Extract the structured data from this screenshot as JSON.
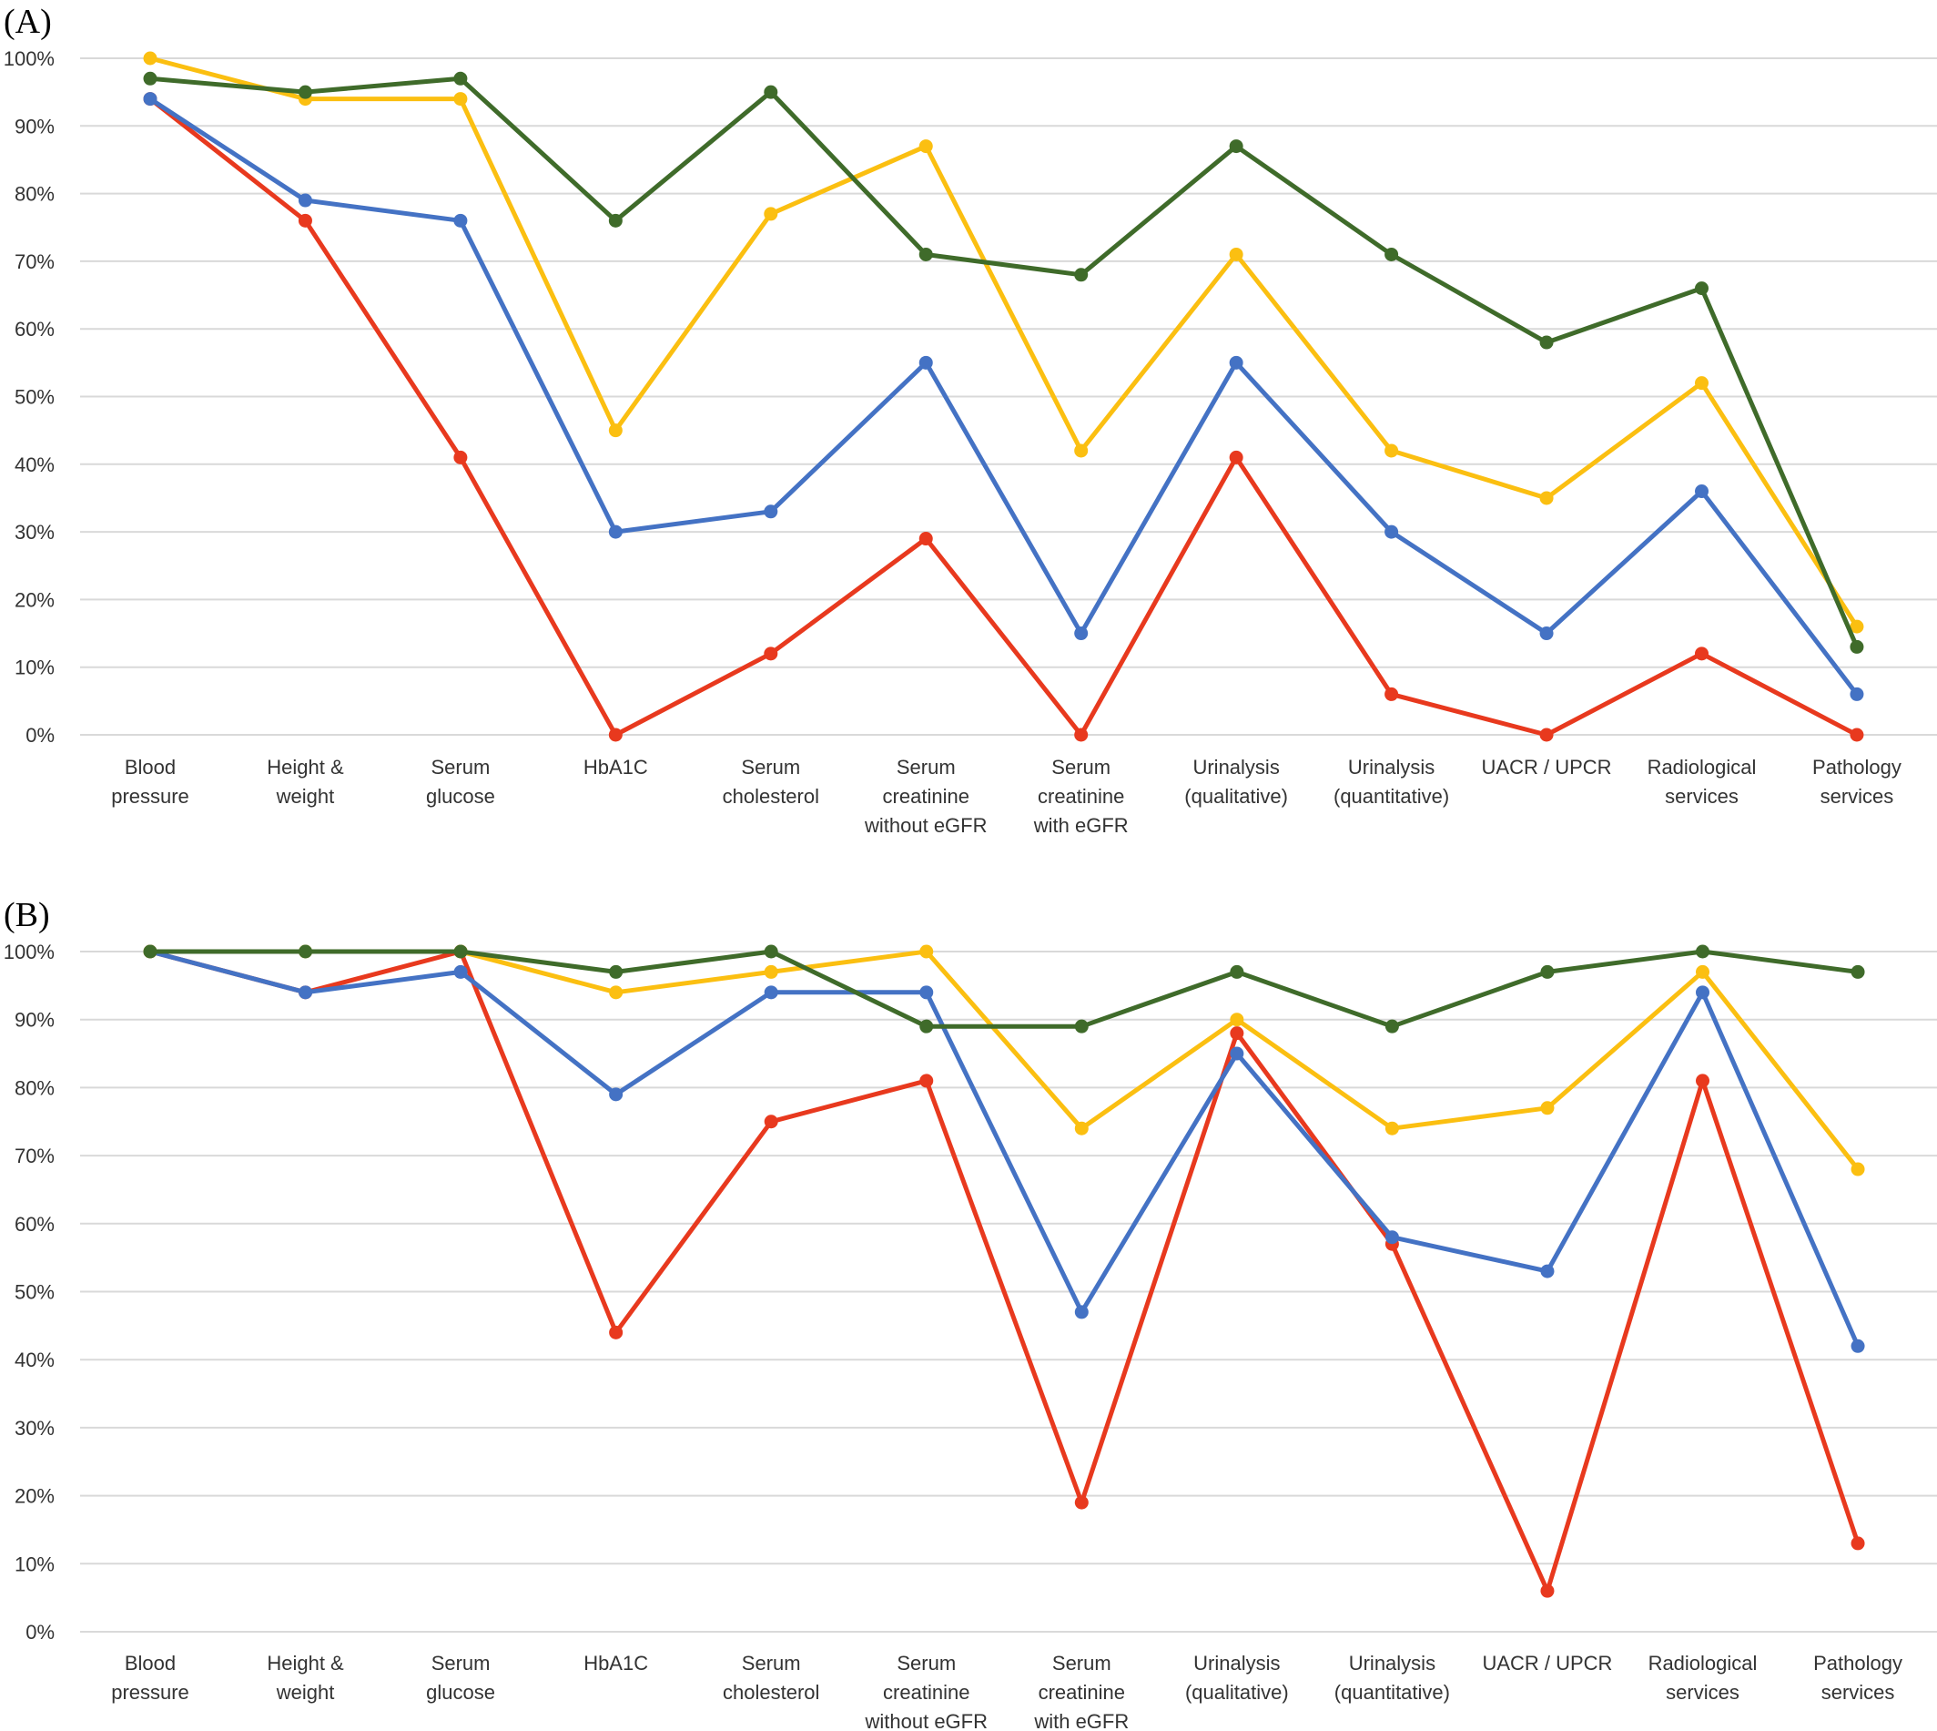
{
  "chart_data": [
    {
      "type": "line",
      "panel_label": "(A)",
      "title": "",
      "xlabel": "",
      "ylabel": "",
      "ylim": [
        0,
        100
      ],
      "yticks": [
        "0%",
        "10%",
        "20%",
        "30%",
        "40%",
        "50%",
        "60%",
        "70%",
        "80%",
        "90%",
        "100%"
      ],
      "grid": true,
      "categories": [
        [
          "Blood",
          "pressure"
        ],
        [
          "Height &",
          "weight"
        ],
        [
          "Serum",
          "glucose"
        ],
        [
          "HbA1C"
        ],
        [
          "Serum",
          "cholesterol"
        ],
        [
          "Serum",
          "creatinine",
          "without eGFR"
        ],
        [
          "Serum",
          "creatinine",
          "with eGFR"
        ],
        [
          "Urinalysis",
          "(qualitative)"
        ],
        [
          "Urinalysis",
          "(quantitative)"
        ],
        [
          "UACR / UPCR"
        ],
        [
          "Radiological",
          "services"
        ],
        [
          "Pathology",
          "services"
        ]
      ],
      "series": [
        {
          "color": "#4472c4",
          "values": [
            94,
            79,
            76,
            30,
            33,
            55,
            15,
            55,
            30,
            15,
            36,
            6
          ]
        },
        {
          "color": "#e8391e",
          "values": [
            94,
            76,
            41,
            0,
            12,
            29,
            0,
            41,
            6,
            0,
            12,
            0
          ]
        },
        {
          "color": "#fbbf11",
          "values": [
            100,
            94,
            94,
            45,
            77,
            87,
            42,
            71,
            42,
            35,
            52,
            16
          ]
        },
        {
          "color": "#3f6b2a",
          "values": [
            97,
            95,
            97,
            76,
            95,
            71,
            68,
            87,
            71,
            58,
            66,
            13
          ]
        }
      ]
    },
    {
      "type": "line",
      "panel_label": "(B)",
      "title": "",
      "xlabel": "",
      "ylabel": "",
      "ylim": [
        0,
        100
      ],
      "yticks": [
        "0%",
        "10%",
        "20%",
        "30%",
        "40%",
        "50%",
        "60%",
        "70%",
        "80%",
        "90%",
        "100%"
      ],
      "grid": true,
      "categories": [
        [
          "Blood",
          "pressure"
        ],
        [
          "Height &",
          "weight"
        ],
        [
          "Serum",
          "glucose"
        ],
        [
          "HbA1C"
        ],
        [
          "Serum",
          "cholesterol"
        ],
        [
          "Serum",
          "creatinine",
          "without eGFR"
        ],
        [
          "Serum",
          "creatinine",
          "with eGFR"
        ],
        [
          "Urinalysis",
          "(qualitative)"
        ],
        [
          "Urinalysis",
          "(quantitative)"
        ],
        [
          "UACR / UPCR"
        ],
        [
          "Radiological",
          "services"
        ],
        [
          "Pathology",
          "services"
        ]
      ],
      "series": [
        {
          "color": "#4472c4",
          "values": [
            100,
            94,
            97,
            79,
            94,
            94,
            47,
            85,
            58,
            53,
            94,
            42
          ]
        },
        {
          "color": "#e8391e",
          "values": [
            100,
            94,
            100,
            44,
            75,
            81,
            19,
            88,
            57,
            6,
            81,
            13
          ]
        },
        {
          "color": "#fbbf11",
          "values": [
            100,
            100,
            100,
            94,
            97,
            100,
            74,
            90,
            74,
            77,
            97,
            68
          ]
        },
        {
          "color": "#3f6b2a",
          "values": [
            100,
            100,
            100,
            97,
            100,
            89,
            89,
            97,
            89,
            97,
            100,
            97
          ]
        }
      ]
    }
  ]
}
